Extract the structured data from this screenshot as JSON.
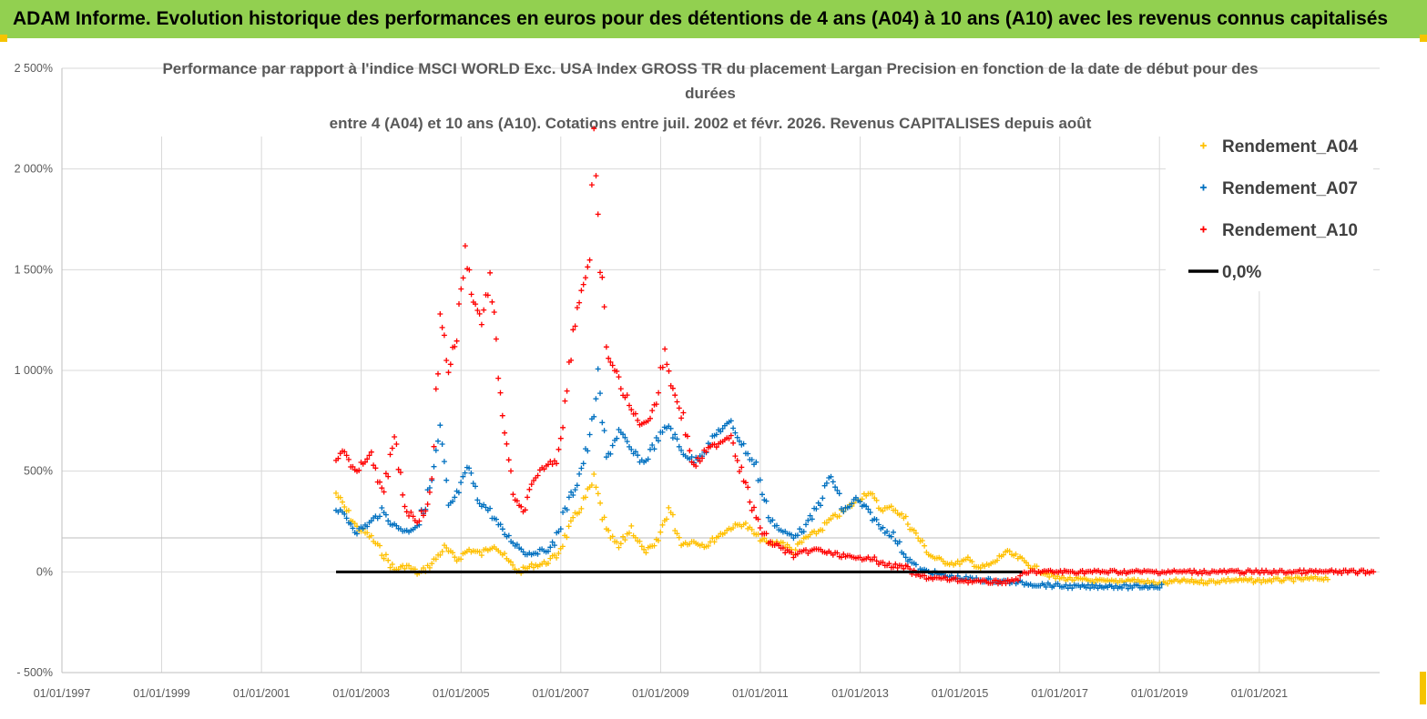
{
  "banner": {
    "text": "ADAM Informe. Evolution historique des performances en euros pour des détentions de 4 ans (A04) à 10 ans (A10) avec les revenus connus capitalisés",
    "background": "#92d050"
  },
  "chart_data": {
    "type": "scatter",
    "title_lines": [
      "Performance par rapport à l'indice MSCI WORLD Exc. USA Index GROSS TR  du placement Largan Precision  en fonction de la date de début pour des",
      "durées",
      "entre 4 (A04) et 10 ans (A10). Cotations entre juil. 2002 et févr. 2026. Revenus CAPITALISES depuis août"
    ],
    "x_ticks": [
      "01/01/1997",
      "01/01/1999",
      "01/01/2001",
      "01/01/2003",
      "01/01/2005",
      "01/01/2007",
      "01/01/2009",
      "01/01/2011",
      "01/01/2013",
      "01/01/2015",
      "01/01/2017",
      "01/01/2019",
      "01/01/2021"
    ],
    "y_ticks": [
      "2 500%",
      "2 000%",
      "1 500%",
      "1 000%",
      "500%",
      "0%",
      "- 500%"
    ],
    "xlim": [
      "1997-01-01",
      "2023-06-01"
    ],
    "ylim": [
      -500,
      2500
    ],
    "y_unit": "%",
    "grid": true,
    "legend_position": "top-right",
    "series": [
      {
        "name": "Rendement_A04",
        "color": "#ffc000",
        "marker": "+",
        "points": [
          [
            "2002-07-01",
            390
          ],
          [
            "2002-09-01",
            320
          ],
          [
            "2002-12-01",
            220
          ],
          [
            "2003-03-01",
            180
          ],
          [
            "2003-06-01",
            100
          ],
          [
            "2003-09-01",
            10
          ],
          [
            "2003-12-01",
            30
          ],
          [
            "2004-03-01",
            -10
          ],
          [
            "2004-06-01",
            40
          ],
          [
            "2004-09-01",
            120
          ],
          [
            "2004-12-01",
            60
          ],
          [
            "2005-03-01",
            110
          ],
          [
            "2005-06-01",
            90
          ],
          [
            "2005-09-01",
            140
          ],
          [
            "2005-12-01",
            60
          ],
          [
            "2006-03-01",
            0
          ],
          [
            "2006-06-01",
            30
          ],
          [
            "2006-09-01",
            40
          ],
          [
            "2006-12-01",
            80
          ],
          [
            "2007-03-01",
            210
          ],
          [
            "2007-06-01",
            330
          ],
          [
            "2007-09-01",
            450
          ],
          [
            "2007-12-01",
            200
          ],
          [
            "2008-03-01",
            120
          ],
          [
            "2008-06-01",
            220
          ],
          [
            "2008-09-01",
            100
          ],
          [
            "2008-12-01",
            130
          ],
          [
            "2009-03-01",
            320
          ],
          [
            "2009-06-01",
            140
          ],
          [
            "2009-09-01",
            150
          ],
          [
            "2009-12-01",
            130
          ],
          [
            "2010-03-01",
            180
          ],
          [
            "2010-06-01",
            220
          ],
          [
            "2010-09-01",
            240
          ],
          [
            "2010-12-01",
            180
          ],
          [
            "2011-03-01",
            140
          ],
          [
            "2011-06-01",
            150
          ],
          [
            "2011-09-01",
            100
          ],
          [
            "2011-12-01",
            170
          ],
          [
            "2012-03-01",
            200
          ],
          [
            "2012-06-01",
            260
          ],
          [
            "2012-09-01",
            300
          ],
          [
            "2012-12-01",
            350
          ],
          [
            "2013-03-01",
            400
          ],
          [
            "2013-06-01",
            310
          ],
          [
            "2013-09-01",
            320
          ],
          [
            "2013-12-01",
            260
          ],
          [
            "2014-03-01",
            170
          ],
          [
            "2014-06-01",
            80
          ],
          [
            "2014-09-01",
            50
          ],
          [
            "2014-12-01",
            40
          ],
          [
            "2015-03-01",
            60
          ],
          [
            "2015-06-01",
            20
          ],
          [
            "2015-09-01",
            40
          ],
          [
            "2015-12-01",
            100
          ],
          [
            "2016-03-01",
            70
          ],
          [
            "2016-06-01",
            30
          ],
          [
            "2016-09-01",
            0
          ],
          [
            "2016-12-01",
            -30
          ],
          [
            "2017-06-01",
            -40
          ],
          [
            "2018-01-01",
            -50
          ],
          [
            "2018-06-01",
            -40
          ],
          [
            "2019-01-01",
            -60
          ],
          [
            "2019-06-01",
            -45
          ],
          [
            "2020-01-01",
            -50
          ],
          [
            "2020-06-01",
            -40
          ],
          [
            "2021-01-01",
            -45
          ],
          [
            "2021-06-01",
            -40
          ],
          [
            "2022-01-01",
            -35
          ],
          [
            "2022-06-01",
            -30
          ]
        ]
      },
      {
        "name": "Rendement_A07",
        "color": "#0070c0",
        "marker": "+",
        "points": [
          [
            "2002-07-01",
            310
          ],
          [
            "2002-09-01",
            280
          ],
          [
            "2002-12-01",
            200
          ],
          [
            "2003-03-01",
            240
          ],
          [
            "2003-06-01",
            300
          ],
          [
            "2003-09-01",
            230
          ],
          [
            "2003-12-01",
            200
          ],
          [
            "2004-03-01",
            240
          ],
          [
            "2004-06-01",
            450
          ],
          [
            "2004-08-01",
            700
          ],
          [
            "2004-10-01",
            320
          ],
          [
            "2004-12-01",
            380
          ],
          [
            "2005-03-01",
            520
          ],
          [
            "2005-05-01",
            360
          ],
          [
            "2005-08-01",
            300
          ],
          [
            "2005-11-01",
            200
          ],
          [
            "2006-02-01",
            140
          ],
          [
            "2006-05-01",
            90
          ],
          [
            "2006-08-01",
            100
          ],
          [
            "2006-11-01",
            120
          ],
          [
            "2007-02-01",
            300
          ],
          [
            "2007-05-01",
            450
          ],
          [
            "2007-08-01",
            650
          ],
          [
            "2007-10-01",
            950
          ],
          [
            "2007-12-01",
            560
          ],
          [
            "2008-03-01",
            700
          ],
          [
            "2008-06-01",
            600
          ],
          [
            "2008-09-01",
            540
          ],
          [
            "2008-12-01",
            650
          ],
          [
            "2009-03-01",
            730
          ],
          [
            "2009-06-01",
            600
          ],
          [
            "2009-09-01",
            550
          ],
          [
            "2009-12-01",
            610
          ],
          [
            "2010-03-01",
            700
          ],
          [
            "2010-06-01",
            740
          ],
          [
            "2010-09-01",
            620
          ],
          [
            "2010-12-01",
            520
          ],
          [
            "2011-03-01",
            280
          ],
          [
            "2011-06-01",
            200
          ],
          [
            "2011-09-01",
            180
          ],
          [
            "2011-12-01",
            220
          ],
          [
            "2012-03-01",
            330
          ],
          [
            "2012-06-01",
            480
          ],
          [
            "2012-09-01",
            300
          ],
          [
            "2012-12-01",
            360
          ],
          [
            "2013-03-01",
            300
          ],
          [
            "2013-06-01",
            220
          ],
          [
            "2013-09-01",
            180
          ],
          [
            "2013-12-01",
            80
          ],
          [
            "2014-03-01",
            10
          ],
          [
            "2014-06-01",
            0
          ],
          [
            "2014-09-01",
            -20
          ],
          [
            "2015-01-01",
            -30
          ],
          [
            "2015-06-01",
            -40
          ],
          [
            "2016-01-01",
            -50
          ],
          [
            "2016-06-01",
            -60
          ],
          [
            "2017-01-01",
            -70
          ],
          [
            "2017-06-01",
            -75
          ],
          [
            "2018-01-01",
            -70
          ],
          [
            "2018-06-01",
            -75
          ],
          [
            "2019-02-01",
            -70
          ]
        ]
      },
      {
        "name": "Rendement_A10",
        "color": "#ff0000",
        "marker": "+",
        "points": [
          [
            "2002-07-01",
            560
          ],
          [
            "2002-09-01",
            600
          ],
          [
            "2002-12-01",
            480
          ],
          [
            "2003-03-01",
            600
          ],
          [
            "2003-06-01",
            380
          ],
          [
            "2003-09-01",
            640
          ],
          [
            "2003-12-01",
            300
          ],
          [
            "2004-03-01",
            250
          ],
          [
            "2004-06-01",
            400
          ],
          [
            "2004-08-01",
            1300
          ],
          [
            "2004-10-01",
            1000
          ],
          [
            "2004-12-01",
            1180
          ],
          [
            "2005-02-01",
            1600
          ],
          [
            "2005-04-01",
            1350
          ],
          [
            "2005-06-01",
            1250
          ],
          [
            "2005-08-01",
            1450
          ],
          [
            "2005-10-01",
            1000
          ],
          [
            "2005-12-01",
            600
          ],
          [
            "2006-02-01",
            350
          ],
          [
            "2006-04-01",
            300
          ],
          [
            "2006-06-01",
            420
          ],
          [
            "2006-09-01",
            520
          ],
          [
            "2006-12-01",
            560
          ],
          [
            "2007-02-01",
            820
          ],
          [
            "2007-04-01",
            1200
          ],
          [
            "2007-06-01",
            1400
          ],
          [
            "2007-08-01",
            1550
          ],
          [
            "2007-09-01",
            2150
          ],
          [
            "2007-10-01",
            1700
          ],
          [
            "2007-12-01",
            1100
          ],
          [
            "2008-03-01",
            950
          ],
          [
            "2008-06-01",
            800
          ],
          [
            "2008-09-01",
            720
          ],
          [
            "2008-12-01",
            850
          ],
          [
            "2009-02-01",
            1100
          ],
          [
            "2009-04-01",
            900
          ],
          [
            "2009-06-01",
            800
          ],
          [
            "2009-09-01",
            520
          ],
          [
            "2009-12-01",
            600
          ],
          [
            "2010-03-01",
            640
          ],
          [
            "2010-06-01",
            680
          ],
          [
            "2010-09-01",
            460
          ],
          [
            "2010-12-01",
            260
          ],
          [
            "2011-03-01",
            150
          ],
          [
            "2011-06-01",
            120
          ],
          [
            "2011-09-01",
            80
          ],
          [
            "2011-12-01",
            100
          ],
          [
            "2012-03-01",
            110
          ],
          [
            "2012-06-01",
            90
          ],
          [
            "2012-09-01",
            80
          ],
          [
            "2012-12-01",
            60
          ],
          [
            "2013-03-01",
            80
          ],
          [
            "2013-06-01",
            40
          ],
          [
            "2013-09-01",
            30
          ],
          [
            "2013-12-01",
            20
          ],
          [
            "2014-03-01",
            -20
          ],
          [
            "2014-06-01",
            -30
          ],
          [
            "2014-12-01",
            -40
          ],
          [
            "2015-06-01",
            -50
          ],
          [
            "2016-01-01",
            -50
          ],
          [
            "2016-06-01",
            0
          ],
          [
            "2017-06-01",
            0
          ],
          [
            "2018-06-01",
            0
          ],
          [
            "2019-06-01",
            0
          ],
          [
            "2020-06-01",
            0
          ],
          [
            "2021-06-01",
            0
          ],
          [
            "2022-06-01",
            0
          ],
          [
            "2023-05-01",
            0
          ]
        ]
      },
      {
        "name": "0,0%",
        "color": "#000000",
        "marker": "line",
        "points": [
          [
            "2002-07-01",
            0
          ],
          [
            "2016-04-01",
            0
          ]
        ]
      }
    ]
  }
}
